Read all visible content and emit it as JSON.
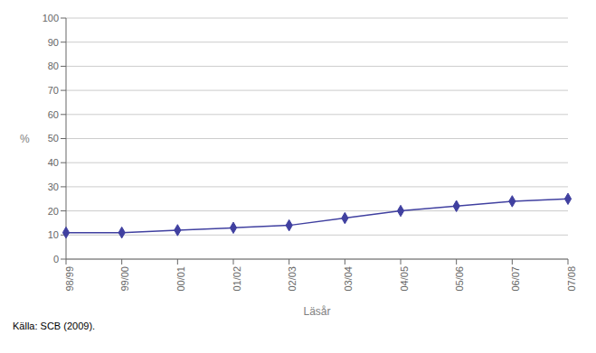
{
  "chart_data": {
    "type": "line",
    "categories": [
      "98/99",
      "99/00",
      "00/01",
      "01/02",
      "02/03",
      "03/04",
      "04/05",
      "05/06",
      "06/07",
      "07/08"
    ],
    "values": [
      11,
      11,
      12,
      13,
      14,
      17,
      20,
      22,
      24,
      25
    ],
    "xlabel": "Läsår",
    "ylabel": "%",
    "caption": "Källa: SCB (2009).",
    "color": "#4040a0",
    "marker": "diamond",
    "ylim": [
      0,
      100
    ],
    "yticks": [
      0,
      10,
      20,
      30,
      40,
      50,
      60,
      70,
      80,
      90,
      100
    ],
    "grid": true
  }
}
